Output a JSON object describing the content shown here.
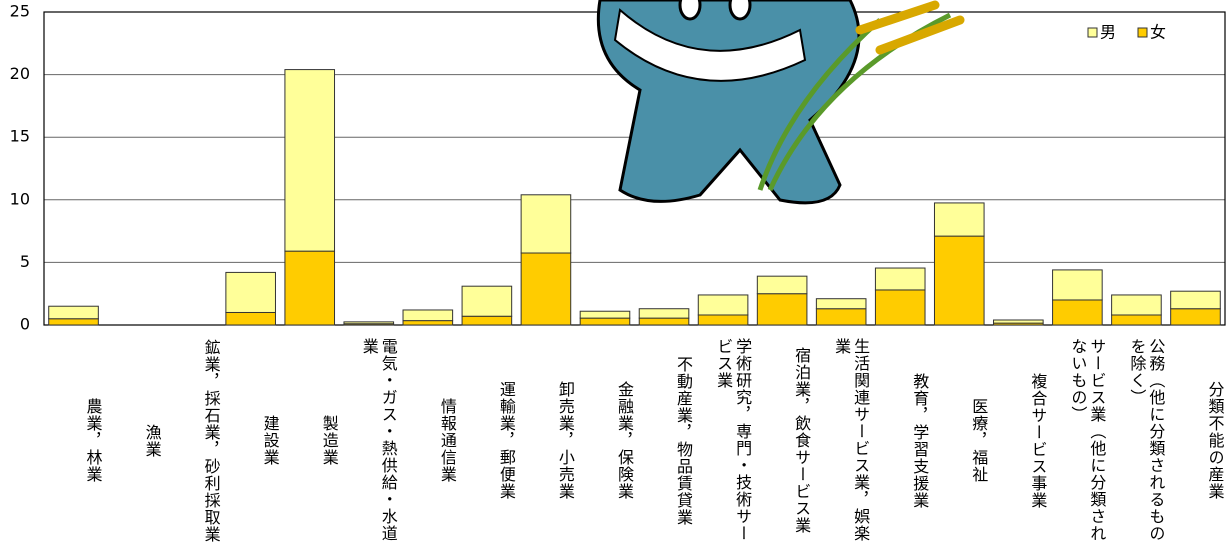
{
  "chart_data": {
    "type": "bar",
    "stacked": true,
    "categories": [
      "農業，林業",
      "漁業",
      "鉱業，採石業，砂利採取業",
      "建設業",
      "製造業",
      "電気・ガス・熱供給・水道業",
      "情報通信業",
      "運輸業，郵便業",
      "卸売業，小売業",
      "金融業，保険業",
      "不動産業，物品賃貸業",
      "学術研究，専門・技術サービス業",
      "宿泊業，飲食サービス業",
      "生活関連サービス業，娯楽業",
      "教育，学習支援業",
      "医療，福祉",
      "複合サービス事業",
      "サービス業（他に分類されないもの）",
      "公務（他に分類されるものを除く）",
      "分類不能の産業"
    ],
    "series": [
      {
        "name": "男",
        "color": "#ffff99",
        "values": [
          1.0,
          0,
          0,
          3.2,
          14.5,
          0.15,
          0.85,
          2.4,
          4.65,
          0.55,
          0.75,
          1.6,
          1.4,
          0.8,
          1.75,
          2.65,
          0.25,
          2.4,
          1.6,
          1.4
        ]
      },
      {
        "name": "女",
        "color": "#ffcc00",
        "values": [
          0.5,
          0,
          0,
          1.0,
          5.9,
          0.1,
          0.35,
          0.7,
          5.75,
          0.55,
          0.55,
          0.8,
          2.5,
          1.3,
          2.8,
          7.1,
          0.15,
          2.0,
          0.8,
          1.3
        ]
      }
    ],
    "ylim": [
      0,
      25
    ],
    "yticks": [
      0,
      5,
      10,
      15,
      20,
      25
    ],
    "grid": true,
    "legend": "top-right"
  }
}
